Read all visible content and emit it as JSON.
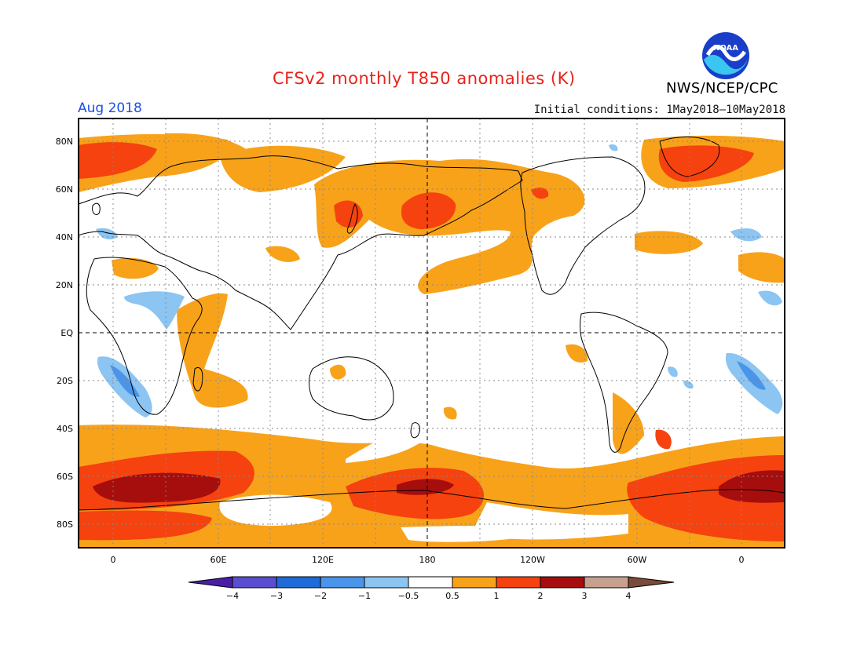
{
  "header": {
    "title": "CFSv2 monthly T850 anomalies (K)",
    "month": "Aug 2018",
    "initial_conditions": "Initial conditions: 1May2018–10May2018",
    "agency": "NWS/NCEP/CPC",
    "logo_text": "NOAA"
  },
  "axes": {
    "lat_labels": [
      "80N",
      "60N",
      "40N",
      "20N",
      "EQ",
      "20S",
      "40S",
      "60S",
      "80S"
    ],
    "lon_labels": [
      "0",
      "60E",
      "120E",
      "180",
      "120W",
      "60W",
      "0"
    ]
  },
  "legend": {
    "ticks": [
      "−4",
      "−3",
      "−2",
      "−1",
      "−0.5",
      "0.5",
      "1",
      "2",
      "3",
      "4"
    ],
    "colors": [
      "#4a1ea6",
      "#5a4ed0",
      "#1e6ad8",
      "#4a94ea",
      "#8cc4f2",
      "#ffffff",
      "#f8a21a",
      "#f5420f",
      "#a60d0d",
      "#c8a090",
      "#7a4a3a"
    ]
  },
  "palette": {
    "warm1": "#f8a21a",
    "warm2": "#f5420f",
    "warm3": "#a60d0d",
    "cool1": "#8cc4f2",
    "cool2": "#4a94ea"
  }
}
